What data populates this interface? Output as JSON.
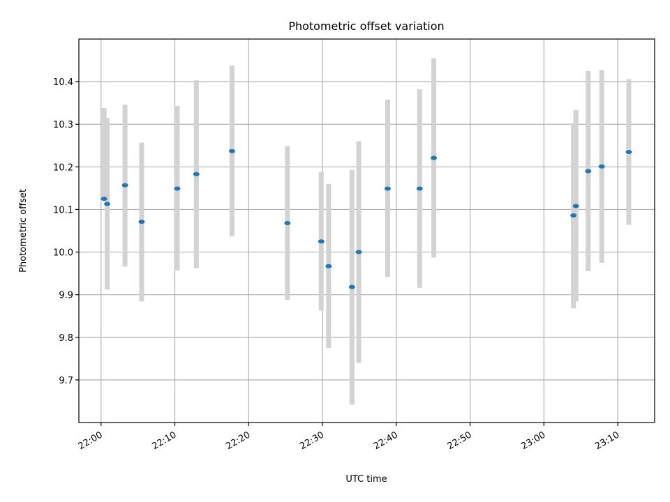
{
  "chart_data": {
    "type": "scatter",
    "title": "Photometric offset variation",
    "xlabel": "UTC time",
    "ylabel": "Photometric offset",
    "xlim": [
      "21:57",
      "23:15"
    ],
    "ylim": [
      9.6,
      10.5
    ],
    "x_ticks": [
      "22:00",
      "22:10",
      "22:20",
      "22:30",
      "22:40",
      "22:50",
      "23:00",
      "23:10"
    ],
    "y_ticks": [
      "9.7",
      "9.8",
      "9.9",
      "10.0",
      "10.1",
      "10.2",
      "10.3",
      "10.4"
    ],
    "grid": true,
    "series": [
      {
        "marker_color": "#1f77b4",
        "errorbar_color": "#d3d3d3",
        "points": [
          {
            "x": "22:00:25",
            "y": 10.125,
            "ylo": 10.125,
            "yhi": 10.338
          },
          {
            "x": "22:00:50",
            "y": 10.113,
            "ylo": 9.912,
            "yhi": 10.315
          },
          {
            "x": "22:03:15",
            "y": 10.157,
            "ylo": 9.966,
            "yhi": 10.346
          },
          {
            "x": "22:05:30",
            "y": 10.071,
            "ylo": 9.884,
            "yhi": 10.257
          },
          {
            "x": "22:10:20",
            "y": 10.149,
            "ylo": 9.957,
            "yhi": 10.343
          },
          {
            "x": "22:12:55",
            "y": 10.183,
            "ylo": 9.962,
            "yhi": 10.403
          },
          {
            "x": "22:17:45",
            "y": 10.237,
            "ylo": 10.037,
            "yhi": 10.438
          },
          {
            "x": "22:25:15",
            "y": 10.068,
            "ylo": 9.888,
            "yhi": 10.249
          },
          {
            "x": "22:29:50",
            "y": 10.025,
            "ylo": 9.863,
            "yhi": 10.188
          },
          {
            "x": "22:30:50",
            "y": 9.967,
            "ylo": 9.775,
            "yhi": 10.16
          },
          {
            "x": "22:34:00",
            "y": 9.918,
            "ylo": 9.642,
            "yhi": 10.193
          },
          {
            "x": "22:34:55",
            "y": 10.0,
            "ylo": 9.74,
            "yhi": 10.26
          },
          {
            "x": "22:38:50",
            "y": 10.149,
            "ylo": 9.942,
            "yhi": 10.358
          },
          {
            "x": "22:43:10",
            "y": 10.149,
            "ylo": 9.916,
            "yhi": 10.382
          },
          {
            "x": "22:45:05",
            "y": 10.221,
            "ylo": 9.987,
            "yhi": 10.455
          },
          {
            "x": "23:04:00",
            "y": 10.086,
            "ylo": 9.868,
            "yhi": 10.302
          },
          {
            "x": "23:04:20",
            "y": 10.108,
            "ylo": 9.884,
            "yhi": 10.333
          },
          {
            "x": "23:06:00",
            "y": 10.19,
            "ylo": 9.955,
            "yhi": 10.425
          },
          {
            "x": "23:07:50",
            "y": 10.201,
            "ylo": 9.975,
            "yhi": 10.427
          },
          {
            "x": "23:11:30",
            "y": 10.235,
            "ylo": 10.064,
            "yhi": 10.406
          }
        ]
      }
    ]
  }
}
